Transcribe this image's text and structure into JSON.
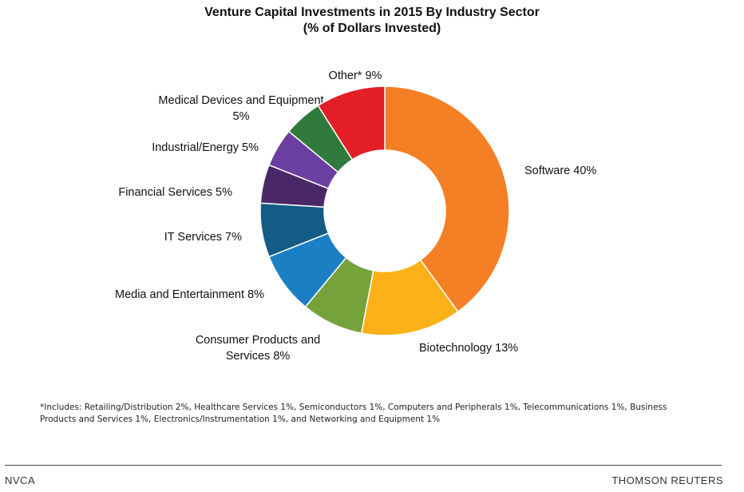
{
  "chart_data": {
    "type": "pie",
    "title": "Venture Capital Investments in 2015 By Industry Sector",
    "subtitle": "(% of Dollars Invested)",
    "slices": [
      {
        "name": "Software",
        "value": 40,
        "label": "Software 40%",
        "color": "#F47F24"
      },
      {
        "name": "Biotechnology",
        "value": 13,
        "label": "Biotechnology 13%",
        "color": "#FBB117"
      },
      {
        "name": "Consumer Products and Services",
        "value": 8,
        "label_lines": [
          "Consumer Products and",
          "Services 8%"
        ],
        "color": "#76A23C"
      },
      {
        "name": "Media and Entertainment",
        "value": 8,
        "label": "Media and Entertainment 8%",
        "color": "#1B7FC4"
      },
      {
        "name": "IT Services",
        "value": 7,
        "label": "IT Services 7%",
        "color": "#135C85"
      },
      {
        "name": "Financial Services",
        "value": 5,
        "label": "Financial Services 5%",
        "color": "#4A2868"
      },
      {
        "name": "Industrial/Energy",
        "value": 5,
        "label": "Industrial/Energy 5%",
        "color": "#6B3FA0"
      },
      {
        "name": "Medical Devices and Equipment",
        "value": 5,
        "label_lines": [
          "Medical Devices and Equipment",
          "5%"
        ],
        "color": "#2F7A3C"
      },
      {
        "name": "Other*",
        "value": 9,
        "label": "Other*  9%",
        "color": "#E31E26"
      }
    ],
    "donut": true
  },
  "footnote": "*Includes: Retailing/Distribution 2%, Healthcare Services 1%, Semiconductors 1%, Computers and Peripherals 1%, Telecommunications 1%, Business Products and Services 1%, Electronics/Instrumentation 1%, and Networking and Equipment 1%",
  "footer": {
    "left": "NVCA",
    "right": "THOMSON REUTERS"
  }
}
